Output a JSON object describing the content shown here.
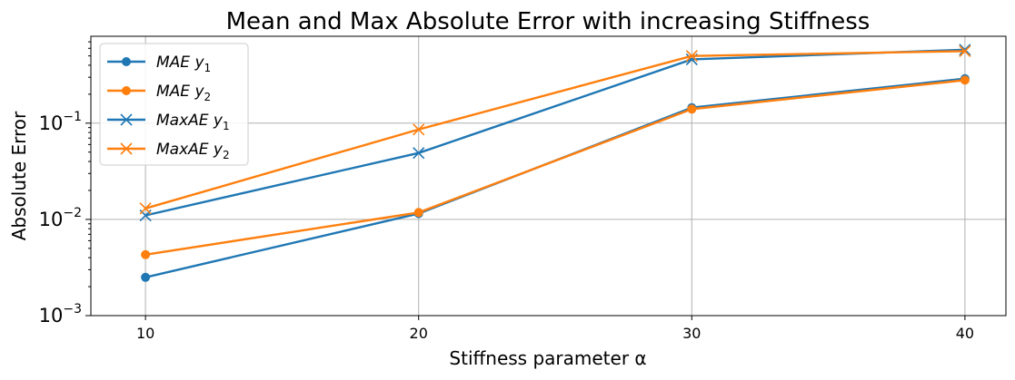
{
  "chart_data": {
    "type": "line",
    "title": "Mean and Max Absolute Error with increasing Stiffness",
    "xlabel": "Stiffness parameter α",
    "ylabel": "Absolute Error",
    "yscale": "log",
    "x": [
      10,
      20,
      30,
      40
    ],
    "xlim": [
      8,
      41.5
    ],
    "ylim": [
      0.001,
      0.8
    ],
    "xticks": [
      10,
      20,
      30,
      40
    ],
    "yticks": [
      {
        "value": 0.001,
        "base": "10",
        "exp": "−3"
      },
      {
        "value": 0.01,
        "base": "10",
        "exp": "−2"
      },
      {
        "value": 0.1,
        "base": "10",
        "exp": "−1"
      }
    ],
    "grid": true,
    "legend_position": "upper-left",
    "series": [
      {
        "name": "MAE y1",
        "label_main": "MAE y",
        "label_sub": "1",
        "color": "#1f77b4",
        "marker": "circle",
        "values": [
          0.0025,
          0.0115,
          0.145,
          0.29
        ]
      },
      {
        "name": "MAE y2",
        "label_main": "MAE y",
        "label_sub": "2",
        "color": "#ff7f0e",
        "marker": "circle",
        "values": [
          0.0043,
          0.0118,
          0.14,
          0.28
        ]
      },
      {
        "name": "MaxAE y1",
        "label_main": "MaxAE y",
        "label_sub": "1",
        "color": "#1f77b4",
        "marker": "x",
        "values": [
          0.011,
          0.049,
          0.46,
          0.58
        ]
      },
      {
        "name": "MaxAE y2",
        "label_main": "MaxAE y",
        "label_sub": "2",
        "color": "#ff7f0e",
        "marker": "x",
        "values": [
          0.013,
          0.086,
          0.5,
          0.56
        ]
      }
    ]
  }
}
